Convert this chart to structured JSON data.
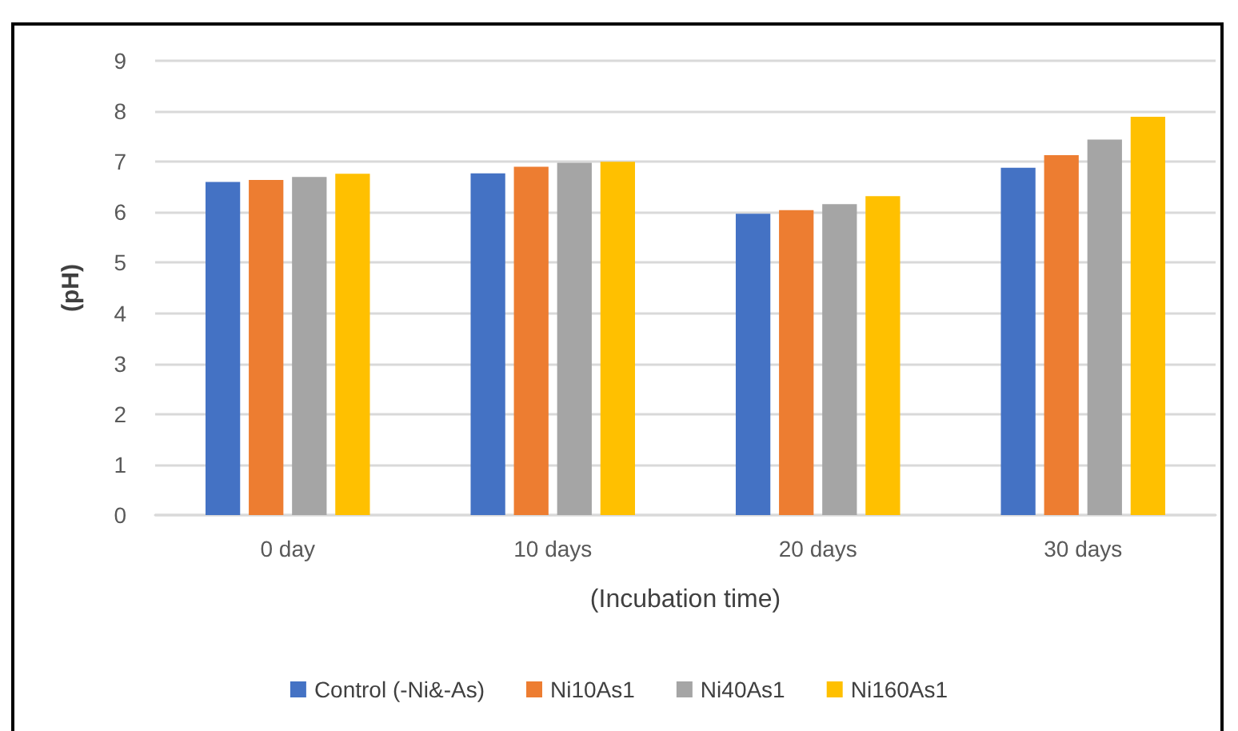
{
  "chart_data": {
    "type": "bar",
    "xlabel": "(Incubation time)",
    "ylabel": "(pH)",
    "categories": [
      "0 day",
      "10 days",
      "20 days",
      "30 days"
    ],
    "series": [
      {
        "name": "Control (-Ni&-As)",
        "color": "#4472c4",
        "values": [
          6.6,
          6.77,
          5.97,
          6.88
        ]
      },
      {
        "name": "Ni10As1",
        "color": "#ed7d31",
        "values": [
          6.64,
          6.9,
          6.04,
          7.13
        ]
      },
      {
        "name": "Ni40As1",
        "color": "#a5a5a5",
        "values": [
          6.7,
          6.98,
          6.16,
          7.44
        ]
      },
      {
        "name": "Ni160As1",
        "color": "#ffc000",
        "values": [
          6.76,
          7.0,
          6.32,
          7.89
        ]
      }
    ],
    "ylim": [
      0,
      9
    ],
    "yticks": [
      0,
      1,
      2,
      3,
      4,
      5,
      6,
      7,
      8,
      9
    ],
    "grid": "y",
    "legend": "bottom"
  }
}
